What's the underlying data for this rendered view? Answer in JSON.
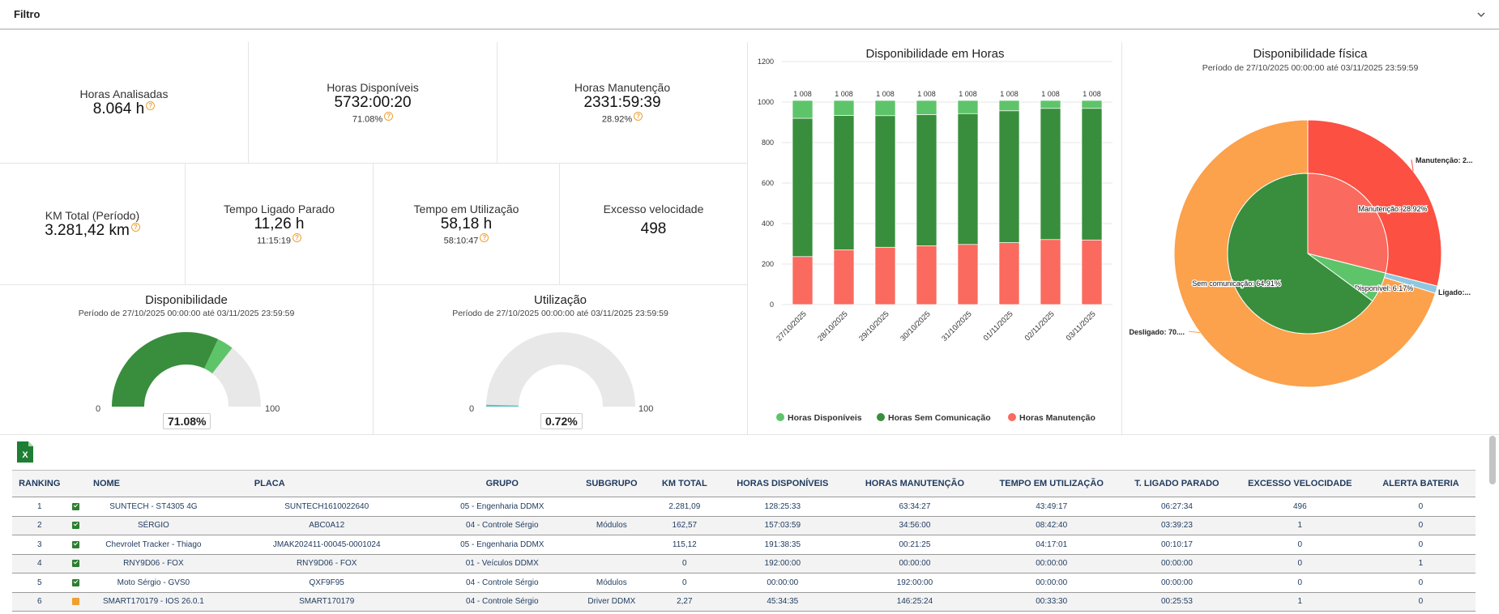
{
  "filter": {
    "title": "Filtro"
  },
  "kpis": {
    "horas_analisadas": {
      "label": "Horas Analisadas",
      "value": "8.064 h"
    },
    "horas_disponiveis": {
      "label": "Horas Disponíveis",
      "value": "5732:00:20",
      "sub": "71.08%"
    },
    "horas_manutencao": {
      "label": "Horas Manutenção",
      "value": "2331:59:39",
      "sub": "28.92%"
    },
    "km_total": {
      "label": "KM Total (Período)",
      "value": "3.281,42 km"
    },
    "tempo_ligado_parado": {
      "label": "Tempo Ligado Parado",
      "value": "11,26 h",
      "sub": "11:15:19"
    },
    "tempo_utilizacao": {
      "label": "Tempo em Utilização",
      "value": "58,18 h",
      "sub": "58:10:47"
    },
    "excesso_velocidade": {
      "label": "Excesso velocidade",
      "value": "498"
    }
  },
  "gauges": {
    "disponibilidade": {
      "title": "Disponibilidade",
      "period": "Período de 27/10/2025 00:00:00 até 03/11/2025 23:59:59",
      "min": "0",
      "max": "100",
      "value_label": "71.08%",
      "value": 71.08,
      "dark_share": 64.91,
      "color_main": "#388e3c",
      "color_light": "#5ec46a"
    },
    "utilizacao": {
      "title": "Utilização",
      "period": "Período de 27/10/2025 00:00:00 até 03/11/2025 23:59:59",
      "min": "0",
      "max": "100",
      "value_label": "0.72%",
      "value": 0.72,
      "color_main": "#5bc0c0"
    }
  },
  "chart_data": [
    {
      "type": "bar",
      "stacked": true,
      "title": "Disponibilidade em Horas",
      "categories": [
        "27/10/2025",
        "28/10/2025",
        "29/10/2025",
        "30/10/2025",
        "31/10/2025",
        "01/11/2025",
        "02/11/2025",
        "03/11/2025"
      ],
      "ylim": [
        0,
        1200
      ],
      "yticks": [
        "0",
        "200",
        "400",
        "600",
        "800",
        "1000",
        "1200"
      ],
      "total_labels": [
        "1 008",
        "1 008",
        "1 008",
        "1 008",
        "1 008",
        "1 008",
        "1 008",
        "1 008"
      ],
      "series": [
        {
          "name": "Horas Manutenção",
          "color": "#fa6a5e",
          "values": [
            237,
            270,
            283,
            290,
            297,
            306,
            321,
            319
          ]
        },
        {
          "name": "Horas Sem Comunicação",
          "color": "#388e3c",
          "values": [
            683,
            664,
            650,
            648,
            646,
            651,
            648,
            650
          ]
        },
        {
          "name": "Horas Disponíveis",
          "color": "#5ec46a",
          "values": [
            88,
            74,
            75,
            70,
            65,
            51,
            39,
            39
          ]
        }
      ]
    },
    {
      "type": "pie",
      "title": "Disponibilidade física",
      "subtitle": "Período de 27/10/2025 00:00:00 até 03/11/2025 23:59:59",
      "inner": [
        {
          "name": "Manutenção",
          "label": "Manutenção: 28.92%",
          "value": 28.92,
          "color": "#fa6a5e"
        },
        {
          "name": "Disponível",
          "label": "Disponível: 6.17%",
          "value": 6.17,
          "color": "#5ec46a"
        },
        {
          "name": "Sem comunicação",
          "label": "Sem comunicação: 64.91%",
          "value": 64.91,
          "color": "#388e3c"
        }
      ],
      "outer": [
        {
          "name": "Manutenção",
          "label": "Manutenção: 2...",
          "value": 28.92,
          "color": "#fb5042"
        },
        {
          "name": "Ligado",
          "label": "Ligado:...",
          "value": 0.9,
          "color": "#8fc7e0"
        },
        {
          "name": "Desligado",
          "label": "Desligado: 70....",
          "value": 70.18,
          "color": "#fca14c"
        }
      ]
    }
  ],
  "table": {
    "headers": [
      "RANKING",
      "",
      "NOME",
      "PLACA",
      "GRUPO",
      "SUBGRUPO",
      "KM TOTAL",
      "HORAS DISPONÍVEIS",
      "HORAS MANUTENÇÃO",
      "TEMPO EM UTILIZAÇÃO",
      "T. LIGADO PARADO",
      "EXCESSO VELOCIDADE",
      "ALERTA BATERIA"
    ],
    "rows": [
      {
        "rank": "1",
        "status": "ok",
        "nome": "SUNTECH - ST4305 4G",
        "placa": "SUNTECH1610022640",
        "grupo": "05 - Engenharia DDMX",
        "subgrupo": "",
        "km": "2.281,09",
        "disp": "128:25:33",
        "manut": "63:34:27",
        "util": "43:49:17",
        "parado": "06:27:34",
        "excesso": "496",
        "bateria": "0"
      },
      {
        "rank": "2",
        "status": "ok",
        "nome": "SÉRGIO",
        "placa": "ABC0A12",
        "grupo": "04 - Controle Sérgio",
        "subgrupo": "Módulos",
        "km": "162,57",
        "disp": "157:03:59",
        "manut": "34:56:00",
        "util": "08:42:40",
        "parado": "03:39:23",
        "excesso": "1",
        "bateria": "0"
      },
      {
        "rank": "3",
        "status": "ok",
        "nome": "Chevrolet Tracker - Thiago",
        "placa": "JMAK202411-00045-0001024",
        "grupo": "05 - Engenharia DDMX",
        "subgrupo": "",
        "km": "115,12",
        "disp": "191:38:35",
        "manut": "00:21:25",
        "util": "04:17:01",
        "parado": "00:10:17",
        "excesso": "0",
        "bateria": "0"
      },
      {
        "rank": "4",
        "status": "ok",
        "nome": "RNY9D06 - FOX",
        "placa": "RNY9D06 - FOX",
        "grupo": "01 - Veículos DDMX",
        "subgrupo": "",
        "km": "0",
        "disp": "192:00:00",
        "manut": "00:00:00",
        "util": "00:00:00",
        "parado": "00:00:00",
        "excesso": "0",
        "bateria": "1"
      },
      {
        "rank": "5",
        "status": "ok",
        "nome": "Moto Sérgio - GVS0",
        "placa": "QXF9F95",
        "grupo": "04 - Controle Sérgio",
        "subgrupo": "Módulos",
        "km": "0",
        "disp": "00:00:00",
        "manut": "192:00:00",
        "util": "00:00:00",
        "parado": "00:00:00",
        "excesso": "0",
        "bateria": "0"
      },
      {
        "rank": "6",
        "status": "warn",
        "nome": "SMART170179 - IOS 26.0.1",
        "placa": "SMART170179",
        "grupo": "04 - Controle Sérgio",
        "subgrupo": "Driver DDMX",
        "km": "2,27",
        "disp": "45:34:35",
        "manut": "146:25:24",
        "util": "00:33:30",
        "parado": "00:25:53",
        "excesso": "1",
        "bateria": "0"
      }
    ]
  }
}
